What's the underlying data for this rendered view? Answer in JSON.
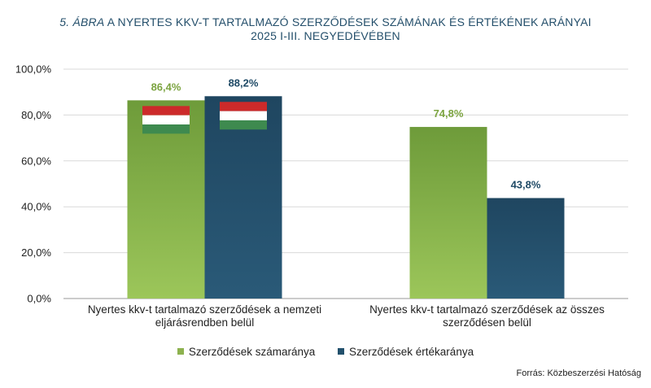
{
  "title": {
    "label": "5. ÁBRA",
    "line1": "A NYERTES KKV-T TARTALMAZÓ SZERZŐDÉSEK SZÁMÁNAK ÉS ÉRTÉKÉNEK ARÁNYAI",
    "line2": "2025 I-III. NEGYEDÉVÉBEN"
  },
  "source": "Forrás: Közbeszerzési Hatóság",
  "colors": {
    "green": "#8db24f",
    "green_light": "#9cc65a",
    "green_dark": "#6e9b3a",
    "blue": "#22506c",
    "blue_dark": "#1f4660",
    "label_green": "#7ba33f",
    "label_blue": "#1f4a66",
    "flag_red": "#cc2a2a",
    "flag_white": "#ffffff",
    "flag_green": "#3e8a4f"
  },
  "chart_data": {
    "type": "bar",
    "categories": [
      [
        "Nyertes kkv-t tartalmazó szerződések a nemzeti",
        "eljárásrendben belül"
      ],
      [
        "Nyertes kkv-t tartalmazó szerződések az összes",
        "szerződésen belül"
      ]
    ],
    "series": [
      {
        "name": "Szerződések számaránya",
        "values": [
          86.4,
          74.8
        ],
        "labels": [
          "86,4%",
          "74,8%"
        ]
      },
      {
        "name": "Szerződések értékaránya",
        "values": [
          88.2,
          43.8
        ],
        "labels": [
          "88,2%",
          "43,8%"
        ]
      }
    ],
    "ylim": [
      0,
      100
    ],
    "yticks": [
      "0,0%",
      "20,0%",
      "40,0%",
      "60,0%",
      "80,0%",
      "100,0%"
    ],
    "flags_on_category": 0,
    "grid": true,
    "legend_position": "bottom"
  }
}
